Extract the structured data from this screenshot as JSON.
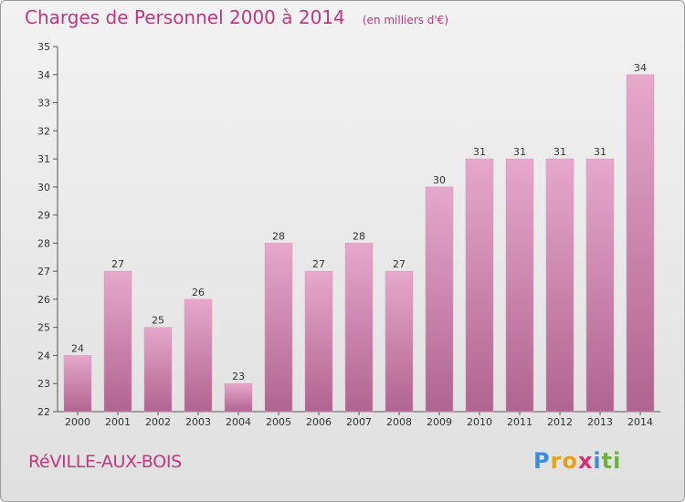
{
  "title": "Charges de Personnel 2000 à 2014",
  "subtitle": "(en milliers d'€)",
  "commune": "RéVILLE-AUX-BOIS",
  "logo": {
    "letters": [
      "P",
      "r",
      "o",
      "x",
      "i",
      "t",
      "i"
    ],
    "colors": [
      "#3b8fd6",
      "#e8a21a",
      "#e8a21a",
      "#d62f6e",
      "#3b8fd6",
      "#6bb33c",
      "#6bb33c"
    ]
  },
  "colors": {
    "bar_top": "#e6a8cb",
    "bar_bottom": "#b0648f",
    "accent": "#c0387f"
  },
  "chart_data": {
    "type": "bar",
    "categories": [
      "2000",
      "2001",
      "2002",
      "2003",
      "2004",
      "2005",
      "2006",
      "2007",
      "2008",
      "2009",
      "2010",
      "2011",
      "2012",
      "2013",
      "2014"
    ],
    "values": [
      24,
      27,
      25,
      26,
      23,
      28,
      27,
      28,
      27,
      30,
      31,
      31,
      31,
      31,
      34
    ],
    "ylim": [
      22,
      35
    ],
    "yticks": [
      22,
      23,
      24,
      25,
      26,
      27,
      28,
      29,
      30,
      31,
      32,
      33,
      34,
      35
    ],
    "grid": false,
    "xlabel": "",
    "ylabel": ""
  }
}
